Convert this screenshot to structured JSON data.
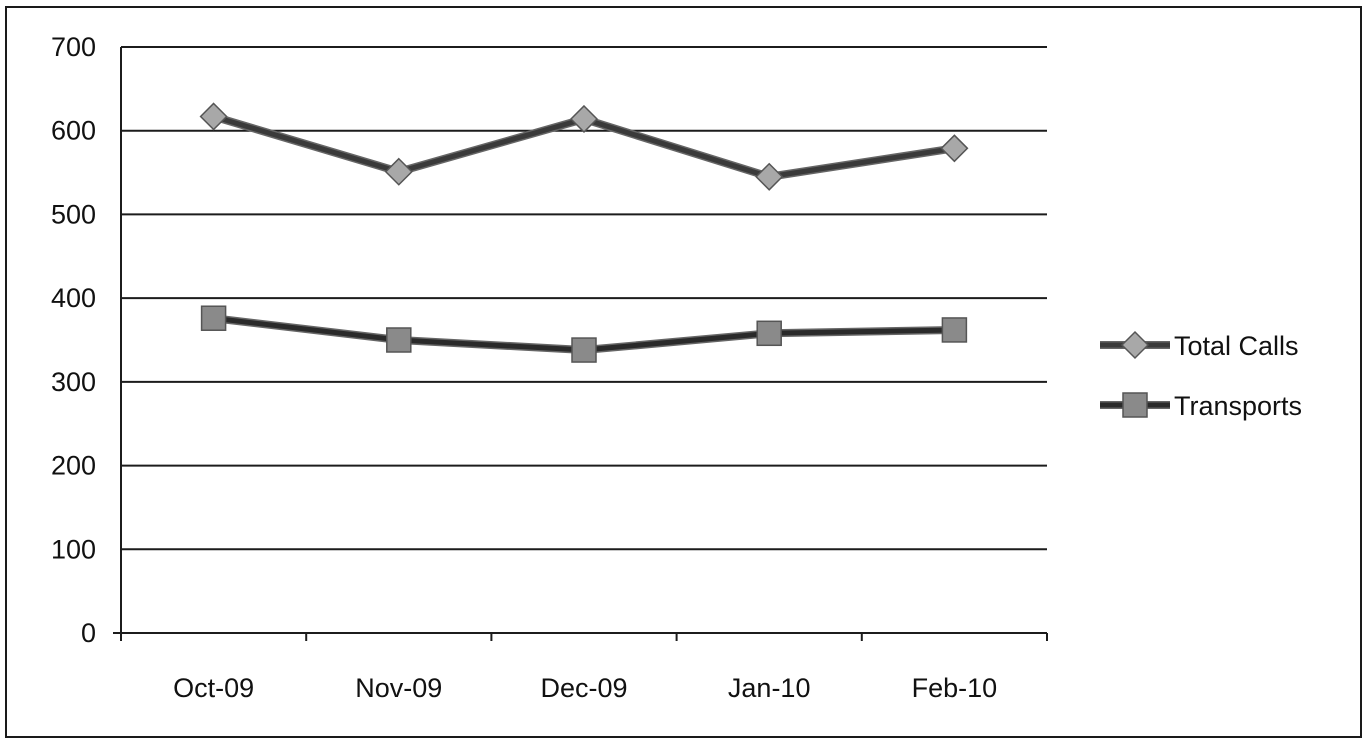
{
  "chart_data": {
    "type": "line",
    "categories": [
      "Oct-09",
      "Nov-09",
      "Dec-09",
      "Jan-10",
      "Feb-10"
    ],
    "series": [
      {
        "name": "Total Calls",
        "values": [
          617,
          551,
          614,
          545,
          579
        ],
        "marker": "diamond",
        "color": "#3a3a3a",
        "marker_color": "#a8a8a8"
      },
      {
        "name": "Transports",
        "values": [
          376,
          350,
          338,
          358,
          362
        ],
        "marker": "square",
        "color": "#2a2a2a",
        "marker_color": "#8a8a8a"
      }
    ],
    "ylim": [
      0,
      700
    ],
    "yticks": [
      0,
      100,
      200,
      300,
      400,
      500,
      600,
      700
    ],
    "grid": true,
    "legend_position": "right",
    "title": "",
    "xlabel": "",
    "ylabel": ""
  }
}
